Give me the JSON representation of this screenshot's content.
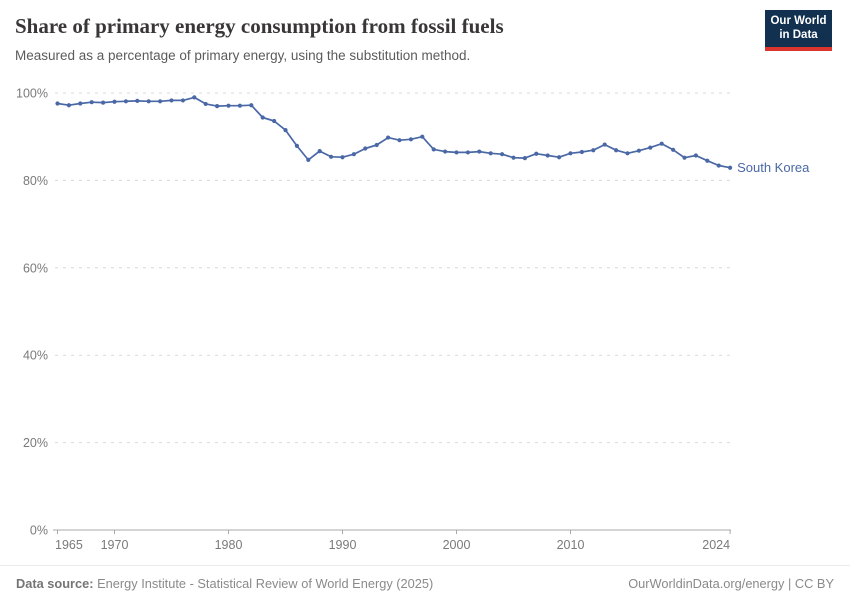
{
  "header": {
    "title": "Share of primary energy consumption from fossil fuels",
    "subtitle": "Measured as a percentage of primary energy, using the substitution method."
  },
  "logo": {
    "line1": "Our World",
    "line2": "in Data",
    "bg_color": "#12304f",
    "accent_color": "#dc352e"
  },
  "chart_data": {
    "type": "line",
    "title": "Share of primary energy consumption from fossil fuels",
    "subtitle": "Measured as a percentage of primary energy, using the substitution method.",
    "xlabel": "",
    "ylabel": "",
    "xlim": [
      1965,
      2024
    ],
    "ylim": [
      0,
      100
    ],
    "x_ticks": [
      1965,
      1970,
      1980,
      1990,
      2000,
      2010,
      2024
    ],
    "y_ticks": [
      0,
      20,
      40,
      60,
      80,
      100
    ],
    "y_tick_suffix": "%",
    "grid": "horizontal-dashed",
    "legend_position": "end-of-line-label",
    "x": [
      1965,
      1966,
      1967,
      1968,
      1969,
      1970,
      1971,
      1972,
      1973,
      1974,
      1975,
      1976,
      1977,
      1978,
      1979,
      1980,
      1981,
      1982,
      1983,
      1984,
      1985,
      1986,
      1987,
      1988,
      1989,
      1990,
      1991,
      1992,
      1993,
      1994,
      1995,
      1996,
      1997,
      1998,
      1999,
      2000,
      2001,
      2002,
      2003,
      2004,
      2005,
      2006,
      2007,
      2008,
      2009,
      2010,
      2011,
      2012,
      2013,
      2014,
      2015,
      2016,
      2017,
      2018,
      2019,
      2020,
      2021,
      2022,
      2023,
      2024
    ],
    "series": [
      {
        "name": "South Korea",
        "color": "#4a68a6",
        "values": [
          97.6,
          97.2,
          97.6,
          97.9,
          97.8,
          98.0,
          98.1,
          98.2,
          98.1,
          98.1,
          98.3,
          98.3,
          99.0,
          97.5,
          97.0,
          97.1,
          97.1,
          97.2,
          94.4,
          93.6,
          91.5,
          87.9,
          84.7,
          86.7,
          85.4,
          85.3,
          86.0,
          87.3,
          88.1,
          89.8,
          89.2,
          89.4,
          90.0,
          87.1,
          86.6,
          86.4,
          86.4,
          86.6,
          86.2,
          86.0,
          85.2,
          85.1,
          86.1,
          85.7,
          85.3,
          86.2,
          86.5,
          86.9,
          88.2,
          86.9,
          86.2,
          86.8,
          87.5,
          88.4,
          87.0,
          85.2,
          85.7,
          84.5,
          83.4,
          82.9
        ]
      }
    ]
  },
  "colors": {
    "line": "#4a68a6",
    "grid": "#d9d9d9",
    "axis": "#a8a8a8",
    "tick_text": "#7a7a7a",
    "title": "#383636",
    "subtitle": "#5b5b5b",
    "footer": "#8a8a8a"
  },
  "footer": {
    "source_label": "Data source:",
    "source_text": "Energy Institute - Statistical Review of World Energy (2025)",
    "credit": "OurWorldinData.org/energy | CC BY"
  }
}
